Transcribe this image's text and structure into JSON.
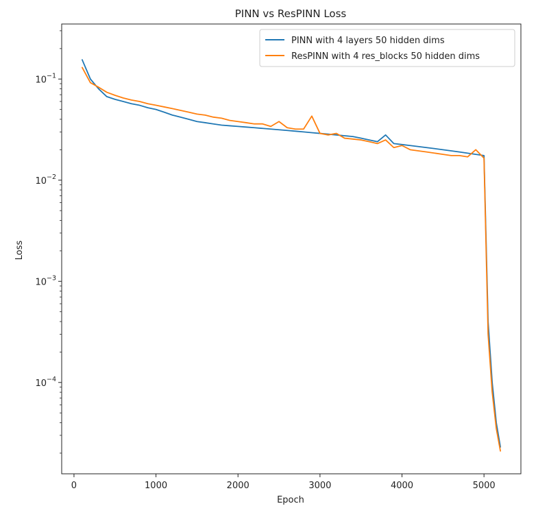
{
  "chart_data": {
    "type": "line",
    "title": "PINN vs ResPINN Loss",
    "xlabel": "Epoch",
    "ylabel": "Loss",
    "xlim": [
      -150,
      5450
    ],
    "ylim": [
      1.25e-05,
      0.35
    ],
    "yscale": "log",
    "grid": false,
    "legend_position": "top-right",
    "x_ticks": [
      {
        "value": 0,
        "label": "0"
      },
      {
        "value": 1000,
        "label": "1000"
      },
      {
        "value": 2000,
        "label": "2000"
      },
      {
        "value": 3000,
        "label": "3000"
      },
      {
        "value": 4000,
        "label": "4000"
      },
      {
        "value": 5000,
        "label": "5000"
      }
    ],
    "y_ticks": [
      {
        "value": 0.1,
        "base": "10",
        "exp": "−1"
      },
      {
        "value": 0.01,
        "base": "10",
        "exp": "−2"
      },
      {
        "value": 0.001,
        "base": "10",
        "exp": "−3"
      },
      {
        "value": 0.0001,
        "base": "10",
        "exp": "−4"
      }
    ],
    "series": [
      {
        "name": "PINN with 4 layers 50 hidden dims",
        "color": "#1f77b4",
        "x": [
          100,
          200,
          300,
          400,
          500,
          600,
          700,
          800,
          900,
          1000,
          1100,
          1200,
          1300,
          1400,
          1500,
          1600,
          1700,
          1800,
          1900,
          2000,
          2100,
          2200,
          2300,
          2400,
          2500,
          2600,
          2700,
          2800,
          2900,
          3000,
          3100,
          3200,
          3300,
          3400,
          3500,
          3600,
          3700,
          3800,
          3900,
          4000,
          4100,
          4200,
          4300,
          4400,
          4500,
          4600,
          4700,
          4800,
          4900,
          5000,
          5050,
          5100,
          5150,
          5200
        ],
        "y": [
          0.155,
          0.1,
          0.08,
          0.067,
          0.063,
          0.06,
          0.057,
          0.055,
          0.052,
          0.05,
          0.047,
          0.044,
          0.042,
          0.04,
          0.038,
          0.037,
          0.036,
          0.035,
          0.0345,
          0.034,
          0.0335,
          0.033,
          0.0325,
          0.032,
          0.0315,
          0.031,
          0.0305,
          0.03,
          0.0295,
          0.029,
          0.0285,
          0.028,
          0.0275,
          0.027,
          0.026,
          0.025,
          0.024,
          0.028,
          0.023,
          0.0225,
          0.022,
          0.0215,
          0.021,
          0.0205,
          0.02,
          0.0195,
          0.019,
          0.0185,
          0.018,
          0.0175,
          0.0004,
          0.0001,
          4e-05,
          2.3e-05
        ]
      },
      {
        "name": "ResPINN with 4 res_blocks 50 hidden dims",
        "color": "#ff7f0e",
        "x": [
          100,
          200,
          300,
          400,
          500,
          600,
          700,
          800,
          900,
          1000,
          1100,
          1200,
          1300,
          1400,
          1500,
          1600,
          1700,
          1800,
          1900,
          2000,
          2100,
          2200,
          2300,
          2400,
          2500,
          2600,
          2700,
          2800,
          2900,
          3000,
          3100,
          3200,
          3300,
          3400,
          3500,
          3600,
          3700,
          3800,
          3900,
          4000,
          4100,
          4200,
          4300,
          4400,
          4500,
          4600,
          4700,
          4800,
          4900,
          5000,
          5050,
          5100,
          5150,
          5200
        ],
        "y": [
          0.13,
          0.092,
          0.083,
          0.074,
          0.069,
          0.065,
          0.062,
          0.06,
          0.057,
          0.055,
          0.053,
          0.051,
          0.049,
          0.047,
          0.045,
          0.044,
          0.042,
          0.041,
          0.039,
          0.038,
          0.037,
          0.036,
          0.036,
          0.034,
          0.038,
          0.033,
          0.032,
          0.032,
          0.043,
          0.029,
          0.028,
          0.029,
          0.026,
          0.0255,
          0.025,
          0.024,
          0.023,
          0.025,
          0.021,
          0.022,
          0.02,
          0.0195,
          0.019,
          0.0185,
          0.018,
          0.0175,
          0.0175,
          0.017,
          0.02,
          0.0165,
          0.0003,
          8e-05,
          3.5e-05,
          2.1e-05
        ]
      }
    ]
  }
}
